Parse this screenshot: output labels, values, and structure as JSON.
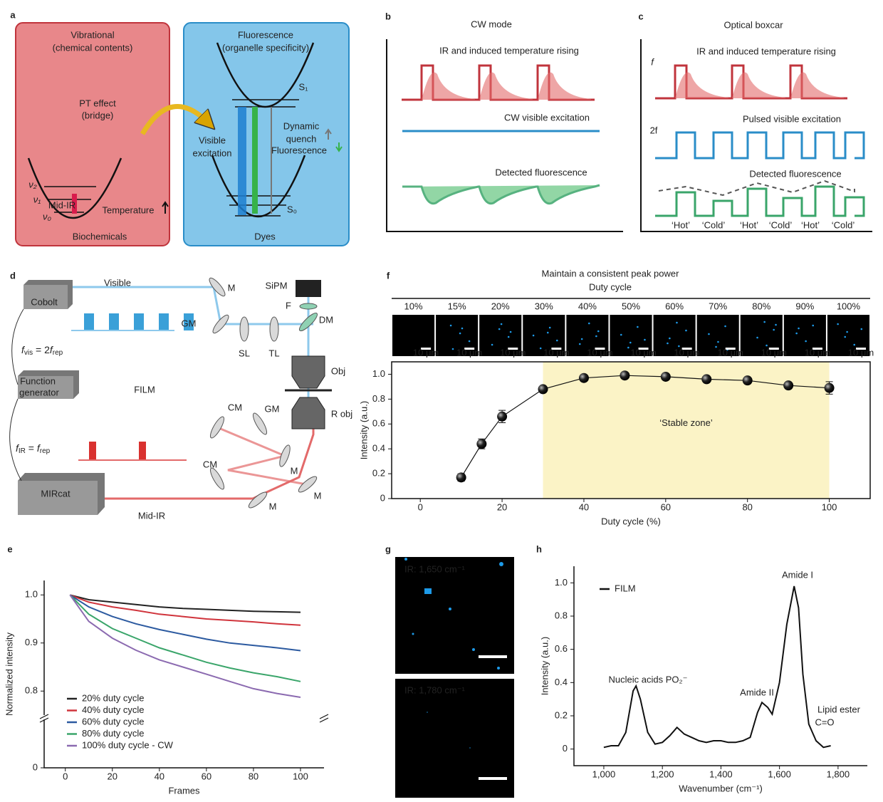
{
  "panel_labels": [
    "a",
    "b",
    "c",
    "d",
    "e",
    "f",
    "g",
    "h"
  ],
  "a": {
    "vibrational": "Vibrational",
    "vib_sub": "(chemical contents)",
    "fluorescence": "Fluorescence",
    "fl_sub": "(organelle specificity)",
    "pt": "PT effect",
    "pt_sub": "(bridge)",
    "visible": "Visible",
    "excitation": "excitation",
    "dynamic": "Dynamic",
    "quench": "quench",
    "fl_label": "Fluorescence",
    "v2": "ν₂",
    "v1": "ν₁",
    "v0": "ν₀",
    "midir": "Mid-IR",
    "temperature": "Temperature",
    "biochemicals": "Biochemicals",
    "s1": "S₁",
    "s0": "S₀",
    "dyes": "Dyes"
  },
  "b": {
    "title": "CW mode",
    "ir": "IR and induced temperature rising",
    "cw": "CW visible excitation",
    "detected": "Detected fluorescence"
  },
  "c": {
    "title": "Optical boxcar",
    "ir": "IR and induced temperature rising",
    "f": "f",
    "two_f": "2f",
    "pulsed": "Pulsed visible excitation",
    "detected": "Detected fluorescence",
    "states": [
      "‘Hot’",
      "‘Cold’",
      "‘Hot’",
      "‘Cold’",
      "‘Hot’",
      "‘Cold’"
    ]
  },
  "d": {
    "cobolt": "Cobolt",
    "visible": "Visible",
    "fvis": [
      "f",
      "vis",
      " = 2",
      "f",
      "rep"
    ],
    "function_generator": [
      "Function",
      "generator"
    ],
    "film": "FILM",
    "fir": [
      "f",
      "IR",
      " = ",
      "f",
      "rep"
    ],
    "mircat": "MIRcat",
    "midir": "Mid-IR",
    "mirrors": [
      "M",
      "M",
      "M",
      "M"
    ],
    "sipm": "SiPM",
    "filter": "F",
    "dm": "DM",
    "gm": [
      "GM",
      "GM"
    ],
    "sl": "SL",
    "tl": "TL",
    "obj": "Obj",
    "robj": "R obj",
    "cm": [
      "CM",
      "CM"
    ]
  },
  "f_images": {
    "title": "Maintain a consistent peak power",
    "subtitle": "Duty cycle",
    "labels": [
      "10%",
      "15%",
      "20%",
      "30%",
      "40%",
      "50%",
      "60%",
      "70%",
      "80%",
      "90%",
      "100%"
    ],
    "scale": "10 μm"
  },
  "g": {
    "labels": [
      "IR: 1,650 cm⁻¹",
      "IR: 1,780 cm⁻¹"
    ]
  },
  "chart_data": [
    {
      "type": "scatter",
      "x": [
        10,
        15,
        20,
        30,
        40,
        50,
        60,
        70,
        80,
        90,
        100
      ],
      "values": [
        0.17,
        0.44,
        0.66,
        0.88,
        0.97,
        0.99,
        0.98,
        0.96,
        0.95,
        0.91,
        0.89
      ],
      "errors": [
        0.03,
        0.04,
        0.05,
        0.02,
        0.01,
        0.01,
        0.01,
        0.01,
        0.02,
        0.01,
        0.05
      ],
      "color": "#111111",
      "xlim": [
        -7,
        110
      ],
      "ylim": [
        0,
        1.1
      ],
      "xticks": [
        0,
        20,
        40,
        60,
        80,
        100
      ],
      "yticks": [
        0,
        0.2,
        0.4,
        0.6,
        0.8,
        {
          "value": 1,
          "label": "1.0"
        }
      ],
      "xlabel": "Duty cycle (%)",
      "ylabel": "Intensity (a.u.)",
      "zone": [
        30,
        100
      ],
      "zone_color": "#fbf3c6",
      "annotation": "‘Stable zone’"
    },
    {
      "type": "line",
      "x": [
        2,
        10,
        20,
        30,
        40,
        50,
        60,
        70,
        80,
        90,
        100
      ],
      "series": [
        {
          "name": "20% duty cycle",
          "color": "#222222",
          "values": [
            1.0,
            0.99,
            0.985,
            0.98,
            0.975,
            0.972,
            0.97,
            0.968,
            0.966,
            0.965,
            0.964
          ]
        },
        {
          "name": "40% duty cycle",
          "color": "#d0343c",
          "values": [
            1.0,
            0.985,
            0.975,
            0.968,
            0.96,
            0.955,
            0.95,
            0.947,
            0.944,
            0.94,
            0.937
          ]
        },
        {
          "name": "60% duty cycle",
          "color": "#2c5aa0",
          "values": [
            1.0,
            0.975,
            0.955,
            0.94,
            0.928,
            0.918,
            0.908,
            0.9,
            0.895,
            0.89,
            0.884
          ]
        },
        {
          "name": "80% duty cycle",
          "color": "#3aa56a",
          "values": [
            1.0,
            0.96,
            0.93,
            0.91,
            0.89,
            0.875,
            0.86,
            0.848,
            0.838,
            0.83,
            0.82
          ]
        },
        {
          "name": "100% duty cycle - CW",
          "color": "#8b6ab0",
          "values": [
            1.0,
            0.945,
            0.91,
            0.885,
            0.865,
            0.85,
            0.835,
            0.82,
            0.805,
            0.795,
            0.787
          ]
        }
      ],
      "xlim": [
        -9,
        110
      ],
      "ylim": [
        0,
        1.03
      ],
      "ybreak": [
        0.05,
        0.75
      ],
      "xticks": [
        0,
        20,
        40,
        60,
        80,
        100
      ],
      "yticks": [
        0,
        0.8,
        0.9,
        {
          "value": 1,
          "label": "1.0"
        }
      ],
      "xlabel": "Frames",
      "ylabel": "Normalized intensity",
      "legend": "lower left"
    },
    {
      "type": "line",
      "x": [
        1000,
        1025,
        1050,
        1075,
        1100,
        1110,
        1125,
        1150,
        1175,
        1200,
        1225,
        1250,
        1275,
        1300,
        1325,
        1350,
        1375,
        1400,
        1425,
        1450,
        1475,
        1500,
        1525,
        1540,
        1560,
        1575,
        1600,
        1625,
        1650,
        1665,
        1680,
        1700,
        1725,
        1750,
        1775
      ],
      "series": [
        {
          "name": "FILM",
          "color": "#111111",
          "values": [
            0.01,
            0.02,
            0.02,
            0.1,
            0.35,
            0.38,
            0.3,
            0.1,
            0.03,
            0.04,
            0.08,
            0.13,
            0.09,
            0.07,
            0.05,
            0.04,
            0.05,
            0.05,
            0.04,
            0.04,
            0.05,
            0.07,
            0.22,
            0.28,
            0.25,
            0.21,
            0.4,
            0.75,
            0.98,
            0.85,
            0.45,
            0.15,
            0.05,
            0.01,
            0.02
          ]
        }
      ],
      "xlim": [
        898,
        1900
      ],
      "ylim": [
        -0.1,
        1.1
      ],
      "xticks": [
        {
          "value": 1000,
          "label": "1,000"
        },
        {
          "value": 1200,
          "label": "1,200"
        },
        {
          "value": 1400,
          "label": "1,400"
        },
        {
          "value": 1600,
          "label": "1,600"
        },
        {
          "value": 1800,
          "label": "1,800"
        }
      ],
      "yticks": [
        0,
        0.2,
        0.4,
        0.6,
        0.8,
        {
          "value": 1,
          "label": "1.0"
        }
      ],
      "xlabel": "Wavenumber (cm⁻¹)",
      "ylabel": "Intensity (a.u.)",
      "annotations": [
        "Nucleic acids PO₂⁻",
        "Amide II",
        "Amide I",
        "Lipid ester",
        "C=O"
      ],
      "legend": "upper left"
    }
  ]
}
